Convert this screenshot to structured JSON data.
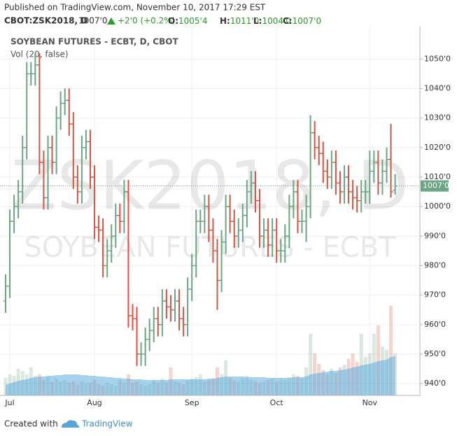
{
  "header": {
    "published": "Published on TradingView.com, November 10, 2017 17:29 EST",
    "symbol": "CBOT:ZSK2018, D",
    "last": "1007'0",
    "change": "+2'0 (+0.2%)",
    "ohlc": [
      {
        "label": "O:",
        "value": "1005'4"
      },
      {
        "label": "H:",
        "value": "1011'0"
      },
      {
        "label": "L:",
        "value": "1004'0"
      },
      {
        "label": "C:",
        "value": "1007'0"
      }
    ]
  },
  "chart_data": {
    "type": "ohlc",
    "title": "SOYBEAN FUTURES - ECBT, D, CBOT",
    "volume_title": "Vol (20, false)",
    "watermark": "ZSK2018, D",
    "watermark_sub": "SOYBEAN FUTURES - ECBT",
    "up_color": "#6ba583",
    "down_color": "#d75442",
    "volume_ma_color": "#4fa6dc",
    "categories": [
      null,
      "Jul",
      null,
      null,
      null,
      null,
      null,
      null,
      null,
      null,
      null,
      null,
      null,
      null,
      null,
      null,
      null,
      null,
      null,
      null,
      null,
      "Aug",
      null,
      null,
      null,
      null,
      null,
      null,
      null,
      null,
      null,
      null,
      null,
      null,
      null,
      null,
      null,
      null,
      null,
      null,
      null,
      null,
      null,
      null,
      "Sep",
      null,
      null,
      null,
      null,
      null,
      null,
      null,
      null,
      null,
      null,
      null,
      null,
      null,
      null,
      null,
      null,
      null,
      null,
      null,
      "Oct",
      null,
      null,
      null,
      null,
      null,
      null,
      null,
      null,
      null,
      null,
      null,
      null,
      null,
      null,
      null,
      null,
      null,
      null,
      null,
      null,
      null,
      "Nov",
      null,
      null,
      null,
      null,
      null,
      null
    ],
    "open": [
      968,
      973,
      995,
      1000,
      1005,
      1020,
      1045,
      1045,
      1048,
      1015,
      1003,
      1020,
      1015,
      1030,
      1035,
      1036,
      1028,
      1010,
      1005,
      1020,
      1022,
      1010,
      993,
      992,
      980,
      985,
      990,
      997,
      995,
      1005,
      963,
      962,
      950,
      950,
      955,
      958,
      962,
      960,
      968,
      966,
      965,
      968,
      962,
      960,
      972,
      980,
      995,
      995,
      1000,
      992,
      985,
      975,
      988,
      1000,
      995,
      990,
      992,
      997,
      1005,
      1008,
      1002,
      990,
      992,
      987,
      992,
      985,
      985,
      990,
      1000,
      1005,
      995,
      995,
      1000,
      1025,
      1020,
      1018,
      1012,
      1010,
      1015,
      1008,
      1005,
      1010,
      1005,
      1003,
      1002,
      1005,
      1005,
      1012,
      1015,
      1008,
      1012,
      1016,
      1005.5
    ],
    "high": [
      977,
      999,
      1004,
      1009,
      1024,
      1049,
      1049,
      1052,
      1052,
      1019,
      1024,
      1024,
      1034,
      1039,
      1040,
      1040,
      1032,
      1014,
      1024,
      1026,
      1026,
      1014,
      997,
      996,
      989,
      994,
      1001,
      1001,
      1009,
      1009,
      967,
      966,
      954,
      959,
      962,
      966,
      966,
      972,
      972,
      970,
      972,
      972,
      966,
      976,
      984,
      999,
      999,
      1004,
      1004,
      996,
      989,
      992,
      1004,
      1004,
      999,
      996,
      1001,
      1009,
      1012,
      1012,
      1006,
      996,
      996,
      996,
      996,
      989,
      994,
      1004,
      1009,
      1009,
      999,
      1004,
      1031,
      1029,
      1024,
      1022,
      1016,
      1019,
      1019,
      1012,
      1014,
      1014,
      1009,
      1007,
      1009,
      1009,
      1019,
      1019,
      1019,
      1016,
      1020,
      1028,
      1011
    ],
    "low": [
      964,
      969,
      991,
      996,
      1001,
      1016,
      1041,
      1041,
      1011,
      999,
      999,
      1011,
      1011,
      1026,
      1031,
      1024,
      1006,
      1001,
      1001,
      1016,
      1006,
      989,
      988,
      976,
      976,
      981,
      986,
      991,
      991,
      959,
      958,
      946,
      946,
      946,
      951,
      954,
      956,
      956,
      962,
      961,
      961,
      958,
      956,
      956,
      968,
      976,
      991,
      991,
      988,
      981,
      965,
      971,
      984,
      991,
      986,
      986,
      988,
      993,
      1001,
      998,
      986,
      986,
      983,
      983,
      981,
      981,
      981,
      986,
      996,
      991,
      991,
      988,
      996,
      1016,
      1014,
      1008,
      1006,
      1006,
      1004,
      1001,
      1001,
      1001,
      999,
      998,
      998,
      1001,
      1001,
      1008,
      1004,
      1004,
      1008,
      1003,
      1004
    ],
    "close": [
      973,
      995,
      1000,
      1005,
      1020,
      1045,
      1045,
      1048,
      1015,
      1003,
      1020,
      1015,
      1030,
      1035,
      1036,
      1028,
      1010,
      1005,
      1020,
      1022,
      1010,
      993,
      992,
      980,
      985,
      990,
      997,
      995,
      1005,
      963,
      962,
      950,
      950,
      955,
      958,
      962,
      960,
      968,
      966,
      965,
      968,
      962,
      960,
      972,
      980,
      995,
      995,
      1000,
      992,
      985,
      975,
      988,
      1000,
      995,
      990,
      992,
      997,
      1005,
      1008,
      1002,
      990,
      992,
      987,
      992,
      985,
      985,
      990,
      1000,
      1005,
      995,
      995,
      1000,
      1025,
      1020,
      1018,
      1012,
      1010,
      1015,
      1008,
      1005,
      1010,
      1005,
      1003,
      1002,
      1005,
      1005,
      1012,
      1015,
      1008,
      1012,
      1016,
      1005,
      1007
    ],
    "volume": [
      25,
      30,
      28,
      38,
      35,
      30,
      40,
      28,
      30,
      22,
      26,
      20,
      24,
      20,
      22,
      18,
      20,
      15,
      20,
      18,
      18,
      22,
      16,
      14,
      18,
      16,
      14,
      22,
      18,
      30,
      18,
      20,
      16,
      14,
      16,
      22,
      18,
      24,
      18,
      40,
      20,
      18,
      16,
      22,
      24,
      26,
      30,
      20,
      22,
      24,
      40,
      30,
      50,
      25,
      22,
      20,
      24,
      28,
      22,
      20,
      18,
      20,
      22,
      24,
      20,
      24,
      22,
      26,
      30,
      28,
      24,
      40,
      88,
      60,
      45,
      36,
      30,
      38,
      32,
      40,
      44,
      52,
      60,
      48,
      88,
      55,
      60,
      88,
      100,
      70,
      65,
      128,
      60
    ],
    "volume_ma": [
      15,
      17,
      19,
      21,
      22,
      23,
      25,
      26,
      27,
      27,
      28,
      28,
      29,
      29,
      30,
      30,
      30,
      30,
      29,
      29,
      28,
      28,
      27,
      27,
      26,
      26,
      25,
      25,
      24,
      24,
      23,
      23,
      23,
      22,
      22,
      22,
      22,
      22,
      22,
      23,
      23,
      23,
      23,
      23,
      23,
      23,
      23,
      23,
      24,
      24,
      25,
      26,
      27,
      27,
      27,
      27,
      27,
      26,
      26,
      26,
      26,
      26,
      25,
      25,
      25,
      25,
      25,
      25,
      26,
      26,
      26,
      27,
      30,
      31,
      32,
      33,
      34,
      35,
      35,
      36,
      37,
      38,
      40,
      41,
      43,
      44,
      45,
      47,
      49,
      50,
      51,
      55,
      56
    ],
    "ylim": [
      936,
      1061
    ],
    "yticks": [
      {
        "value": 940,
        "label": "940'0"
      },
      {
        "value": 950,
        "label": "950'0"
      },
      {
        "value": 960,
        "label": "960'0"
      },
      {
        "value": 970,
        "label": "970'0"
      },
      {
        "value": 980,
        "label": "980'0"
      },
      {
        "value": 990,
        "label": "990'0"
      },
      {
        "value": 1000,
        "label": "1000'0"
      },
      {
        "value": 1010,
        "label": "1010'0"
      },
      {
        "value": 1020,
        "label": "1020'0"
      },
      {
        "value": 1030,
        "label": "1030'0"
      },
      {
        "value": 1040,
        "label": "1040'0"
      },
      {
        "value": 1050,
        "label": "1050'0"
      }
    ],
    "grid": true
  },
  "footer": {
    "created": "Created with",
    "brand": "TradingView"
  }
}
